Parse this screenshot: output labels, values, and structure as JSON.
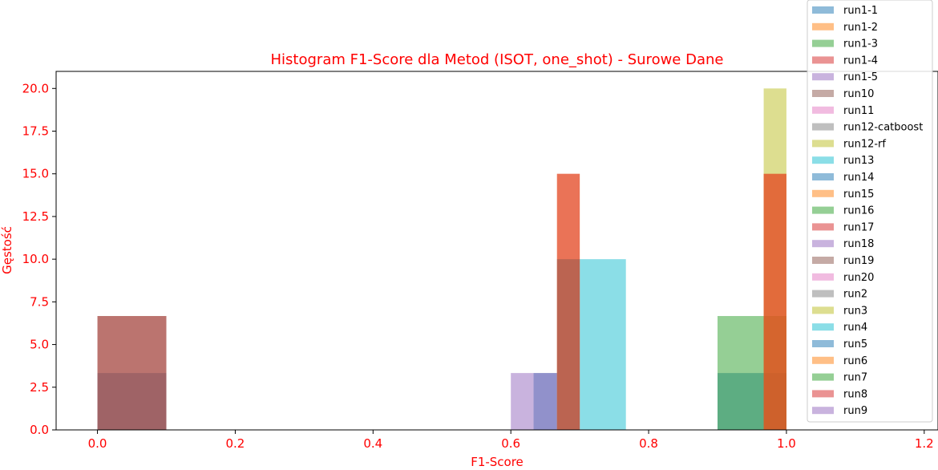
{
  "chart_data": {
    "type": "bar",
    "title": "Histogram F1-Score dla Metod (ISOT, one_shot) - Surowe Dane",
    "xlabel": "F1-Score",
    "ylabel": "Gęstość",
    "xlim": [
      -0.06,
      1.22
    ],
    "ylim": [
      0,
      21
    ],
    "xticks": [
      "0.0",
      "0.2",
      "0.4",
      "0.6",
      "0.8",
      "1.0",
      "1.2"
    ],
    "yticks": [
      "0.0",
      "2.5",
      "5.0",
      "7.5",
      "10.0",
      "12.5",
      "15.0",
      "17.5",
      "20.0"
    ],
    "legend_position": "right",
    "bar_opacity": 0.5,
    "series": [
      {
        "name": "run1-1",
        "color": "#1f77b4",
        "bins": [
          [
            0.0,
            0.1,
            3.33
          ],
          [
            0.633,
            0.667,
            3.33
          ],
          [
            0.9,
            0.967,
            3.33
          ],
          [
            0.967,
            1.0,
            3.33
          ]
        ]
      },
      {
        "name": "run1-2",
        "color": "#ff7f0e",
        "bins": []
      },
      {
        "name": "run1-3",
        "color": "#2ca02c",
        "bins": [
          [
            0.9,
            0.967,
            6.67
          ],
          [
            0.967,
            1.0,
            6.67
          ]
        ]
      },
      {
        "name": "run1-4",
        "color": "#d62728",
        "bins": [
          [
            0.0,
            0.1,
            6.67
          ]
        ]
      },
      {
        "name": "run1-5",
        "color": "#9467bd",
        "bins": [
          [
            0.6,
            0.667,
            3.33
          ]
        ]
      },
      {
        "name": "run10",
        "color": "#8c564b",
        "bins": [
          [
            0.0,
            0.1,
            6.67
          ]
        ]
      },
      {
        "name": "run11",
        "color": "#e377c2",
        "bins": []
      },
      {
        "name": "run12-catboost",
        "color": "#7f7f7f",
        "bins": []
      },
      {
        "name": "run12-rf",
        "color": "#bcbd22",
        "bins": [
          [
            0.967,
            1.0,
            20.0
          ]
        ]
      },
      {
        "name": "run13",
        "color": "#17becf",
        "bins": [
          [
            0.7,
            0.767,
            10.0
          ]
        ]
      },
      {
        "name": "run14",
        "color": "#1f77b4",
        "bins": []
      },
      {
        "name": "run15",
        "color": "#ff7f0e",
        "bins": [
          [
            0.667,
            0.7,
            15.0
          ],
          [
            0.967,
            1.0,
            15.0
          ]
        ]
      },
      {
        "name": "run16",
        "color": "#2ca02c",
        "bins": []
      },
      {
        "name": "run17",
        "color": "#d62728",
        "bins": [
          [
            0.667,
            0.7,
            15.0
          ],
          [
            0.967,
            1.0,
            15.0
          ]
        ]
      },
      {
        "name": "run18",
        "color": "#9467bd",
        "bins": []
      },
      {
        "name": "run19",
        "color": "#8c564b",
        "bins": [
          [
            0.667,
            0.7,
            10.0
          ]
        ]
      },
      {
        "name": "run20",
        "color": "#e377c2",
        "bins": []
      },
      {
        "name": "run2",
        "color": "#7f7f7f",
        "bins": []
      },
      {
        "name": "run3",
        "color": "#bcbd22",
        "bins": []
      },
      {
        "name": "run4",
        "color": "#17becf",
        "bins": []
      },
      {
        "name": "run5",
        "color": "#1f77b4",
        "bins": []
      },
      {
        "name": "run6",
        "color": "#ff7f0e",
        "bins": []
      },
      {
        "name": "run7",
        "color": "#2ca02c",
        "bins": []
      },
      {
        "name": "run8",
        "color": "#d62728",
        "bins": []
      },
      {
        "name": "run9",
        "color": "#9467bd",
        "bins": []
      }
    ]
  }
}
